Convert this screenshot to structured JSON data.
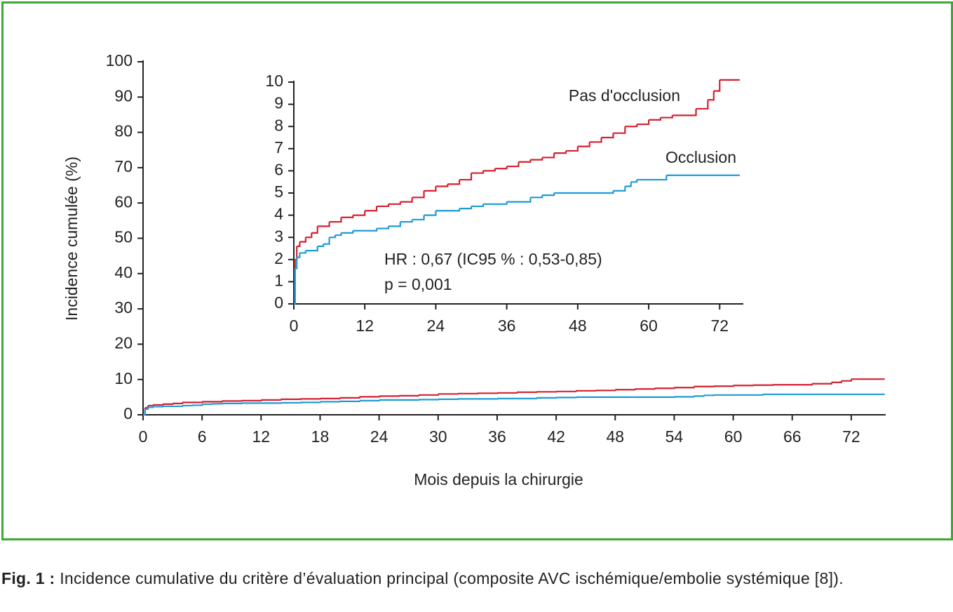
{
  "chart_data": [
    {
      "type": "step",
      "ylabel": "Incidence cumulée (%)",
      "xlabel": "Mois depuis la chirurgie",
      "xlim": [
        0,
        75.5
      ],
      "ylim": [
        0,
        100
      ],
      "xticks": [
        0,
        6,
        12,
        18,
        24,
        30,
        36,
        42,
        48,
        54,
        60,
        66,
        72
      ],
      "yticks": [
        0,
        10,
        20,
        30,
        40,
        50,
        60,
        70,
        80,
        90,
        100
      ],
      "series": [
        {
          "name": "Pas d'occlusion",
          "color": "#d42030",
          "x": [
            0,
            0.2,
            0.5,
            1,
            2,
            3,
            4,
            6,
            8,
            10,
            12,
            14,
            16,
            18,
            20,
            22,
            24,
            26,
            28,
            30,
            32,
            34,
            36,
            38,
            40,
            42,
            44,
            46,
            48,
            50,
            52,
            54,
            56,
            58,
            60,
            62,
            64,
            68,
            70,
            71,
            72,
            75.4
          ],
          "values": [
            0,
            2.0,
            2.6,
            2.8,
            3.0,
            3.2,
            3.5,
            3.7,
            3.9,
            4.0,
            4.2,
            4.4,
            4.5,
            4.6,
            4.8,
            5.1,
            5.3,
            5.4,
            5.6,
            5.9,
            6.0,
            6.1,
            6.2,
            6.4,
            6.5,
            6.6,
            6.8,
            6.9,
            7.1,
            7.3,
            7.5,
            7.7,
            8.0,
            8.1,
            8.3,
            8.4,
            8.5,
            8.8,
            9.2,
            9.6,
            10.1,
            10.1
          ]
        },
        {
          "name": "Occlusion",
          "color": "#1e9bd7",
          "x": [
            0,
            0.2,
            0.5,
            1,
            2,
            4,
            5,
            6,
            7,
            8,
            10,
            14,
            16,
            18,
            20,
            22,
            24,
            28,
            30,
            32,
            36,
            40,
            42,
            44,
            54,
            56,
            57,
            58,
            63,
            75.4
          ],
          "values": [
            0,
            1.6,
            2.1,
            2.3,
            2.4,
            2.6,
            2.7,
            3.0,
            3.1,
            3.2,
            3.3,
            3.4,
            3.5,
            3.7,
            3.8,
            4.0,
            4.2,
            4.3,
            4.4,
            4.5,
            4.6,
            4.8,
            4.9,
            5.0,
            5.1,
            5.3,
            5.5,
            5.6,
            5.8,
            5.8
          ]
        }
      ]
    },
    {
      "type": "step",
      "xlim": [
        0,
        76
      ],
      "ylim": [
        0,
        10
      ],
      "xticks": [
        0,
        12,
        24,
        36,
        48,
        60,
        72
      ],
      "yticks": [
        0,
        1,
        2,
        3,
        4,
        5,
        6,
        7,
        8,
        9,
        10
      ],
      "annotations": [
        "HR : 0,67 (IC95 % : 0,53-0,85)",
        "p = 0,001"
      ],
      "series": [
        {
          "name": "Pas d'occlusion",
          "color": "#d42030",
          "x": [
            0,
            0.2,
            0.5,
            1,
            2,
            3,
            4,
            6,
            8,
            10,
            12,
            14,
            16,
            18,
            20,
            22,
            24,
            26,
            28,
            30,
            32,
            34,
            36,
            38,
            40,
            42,
            44,
            46,
            48,
            50,
            52,
            54,
            56,
            58,
            60,
            62,
            64,
            68,
            70,
            71,
            72,
            75.4
          ],
          "values": [
            0,
            2.0,
            2.6,
            2.8,
            3.0,
            3.2,
            3.5,
            3.7,
            3.9,
            4.0,
            4.2,
            4.4,
            4.5,
            4.6,
            4.8,
            5.1,
            5.3,
            5.4,
            5.6,
            5.9,
            6.0,
            6.1,
            6.2,
            6.4,
            6.5,
            6.6,
            6.8,
            6.9,
            7.1,
            7.3,
            7.5,
            7.7,
            8.0,
            8.1,
            8.3,
            8.4,
            8.5,
            8.8,
            9.2,
            9.6,
            10.1,
            10.1
          ]
        },
        {
          "name": "Occlusion",
          "color": "#1e9bd7",
          "x": [
            0,
            0.2,
            0.5,
            1,
            2,
            4,
            5,
            6,
            7,
            8,
            10,
            14,
            16,
            18,
            20,
            22,
            24,
            28,
            30,
            32,
            36,
            40,
            42,
            44,
            54,
            56,
            57,
            58,
            63,
            75.4
          ],
          "values": [
            0,
            1.6,
            2.1,
            2.3,
            2.4,
            2.6,
            2.7,
            3.0,
            3.1,
            3.2,
            3.3,
            3.4,
            3.5,
            3.7,
            3.8,
            4.0,
            4.2,
            4.3,
            4.4,
            4.5,
            4.6,
            4.8,
            4.9,
            5.0,
            5.1,
            5.3,
            5.5,
            5.6,
            5.8,
            5.8
          ]
        }
      ]
    }
  ],
  "caption": {
    "label": "Fig. 1 :",
    "text": "Incidence cumulative du critère d’évaluation principal (composite AVC ischémique/embolie systémique [8])."
  }
}
